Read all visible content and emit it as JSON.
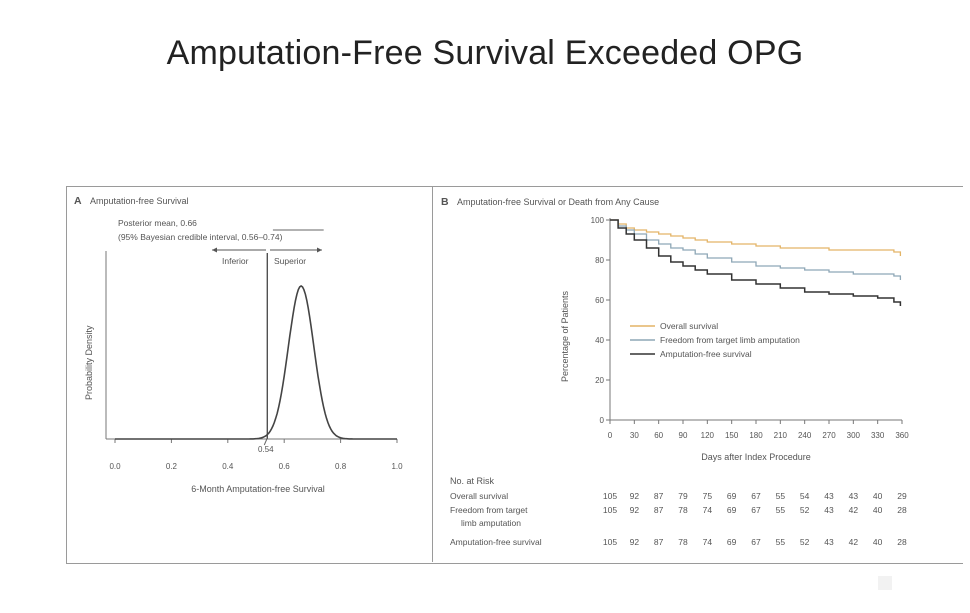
{
  "slide": {
    "title": "Amputation-Free Survival Exceeded OPG"
  },
  "chart_data": [
    {
      "panel": "A",
      "type": "line",
      "title": "Amputation-free Survival",
      "xlabel": "6-Month Amputation-free Survival",
      "ylabel": "Probability Density",
      "xlim": [
        0.0,
        1.0
      ],
      "x_ticks": [
        "0.0",
        "0.2",
        "0.4",
        "0.6",
        "0.8",
        "1.0"
      ],
      "annotations": {
        "posterior_mean": "Posterior mean, 0.66",
        "credible_interval": "(95% Bayesian credible interval, 0.56–0.74)",
        "inferior": "Inferior",
        "superior": "Superior",
        "threshold_label": "0.54"
      },
      "threshold": 0.54,
      "ci": [
        0.56,
        0.74
      ],
      "distribution": {
        "mean": 0.66,
        "sd": 0.045
      }
    },
    {
      "panel": "B",
      "type": "line",
      "title": "Amputation-free Survival or Death from Any Cause",
      "xlabel": "Days after Index Procedure",
      "ylabel": "Percentage of Patients",
      "xlim": [
        0,
        360
      ],
      "ylim": [
        0,
        100
      ],
      "x_ticks": [
        "0",
        "30",
        "60",
        "90",
        "120",
        "150",
        "180",
        "210",
        "240",
        "270",
        "300",
        "330",
        "360"
      ],
      "y_ticks": [
        "0",
        "20",
        "40",
        "60",
        "80",
        "100"
      ],
      "legend_position": "middle-left",
      "series": [
        {
          "name": "Overall survival",
          "color": "#e3b467",
          "x": [
            0,
            10,
            20,
            30,
            45,
            60,
            75,
            90,
            105,
            120,
            150,
            180,
            210,
            240,
            270,
            300,
            330,
            350,
            358
          ],
          "y": [
            100,
            98,
            96,
            95,
            94,
            93,
            92,
            91,
            90,
            89,
            88,
            87,
            86,
            86,
            85,
            85,
            85,
            84,
            82
          ]
        },
        {
          "name": "Freedom from target limb amputation",
          "color": "#8ea7b6",
          "x": [
            0,
            10,
            20,
            30,
            45,
            60,
            75,
            90,
            105,
            120,
            150,
            180,
            210,
            240,
            270,
            300,
            330,
            350,
            358
          ],
          "y": [
            100,
            97,
            95,
            93,
            90,
            88,
            86,
            85,
            83,
            81,
            79,
            77,
            76,
            75,
            74,
            73,
            73,
            72,
            70
          ]
        },
        {
          "name": "Amputation-free survival",
          "color": "#333333",
          "x": [
            0,
            10,
            20,
            30,
            45,
            60,
            75,
            90,
            105,
            120,
            150,
            180,
            210,
            240,
            270,
            300,
            330,
            350,
            358
          ],
          "y": [
            100,
            96,
            93,
            90,
            86,
            82,
            79,
            77,
            75,
            73,
            70,
            68,
            66,
            64,
            63,
            62,
            61,
            59,
            57
          ]
        }
      ],
      "risk_table": {
        "header": "No. at Risk",
        "rows": [
          {
            "label": [
              "Overall survival"
            ],
            "values": [
              "105",
              "92",
              "87",
              "79",
              "75",
              "69",
              "67",
              "55",
              "54",
              "43",
              "43",
              "40",
              "29"
            ]
          },
          {
            "label": [
              "Freedom from target",
              "limb amputation"
            ],
            "values": [
              "105",
              "92",
              "87",
              "78",
              "74",
              "69",
              "67",
              "55",
              "52",
              "43",
              "42",
              "40",
              "28"
            ]
          },
          {
            "label": [
              "Amputation-free survival"
            ],
            "values": [
              "105",
              "92",
              "87",
              "78",
              "74",
              "69",
              "67",
              "55",
              "52",
              "43",
              "42",
              "40",
              "28"
            ]
          }
        ]
      }
    }
  ]
}
